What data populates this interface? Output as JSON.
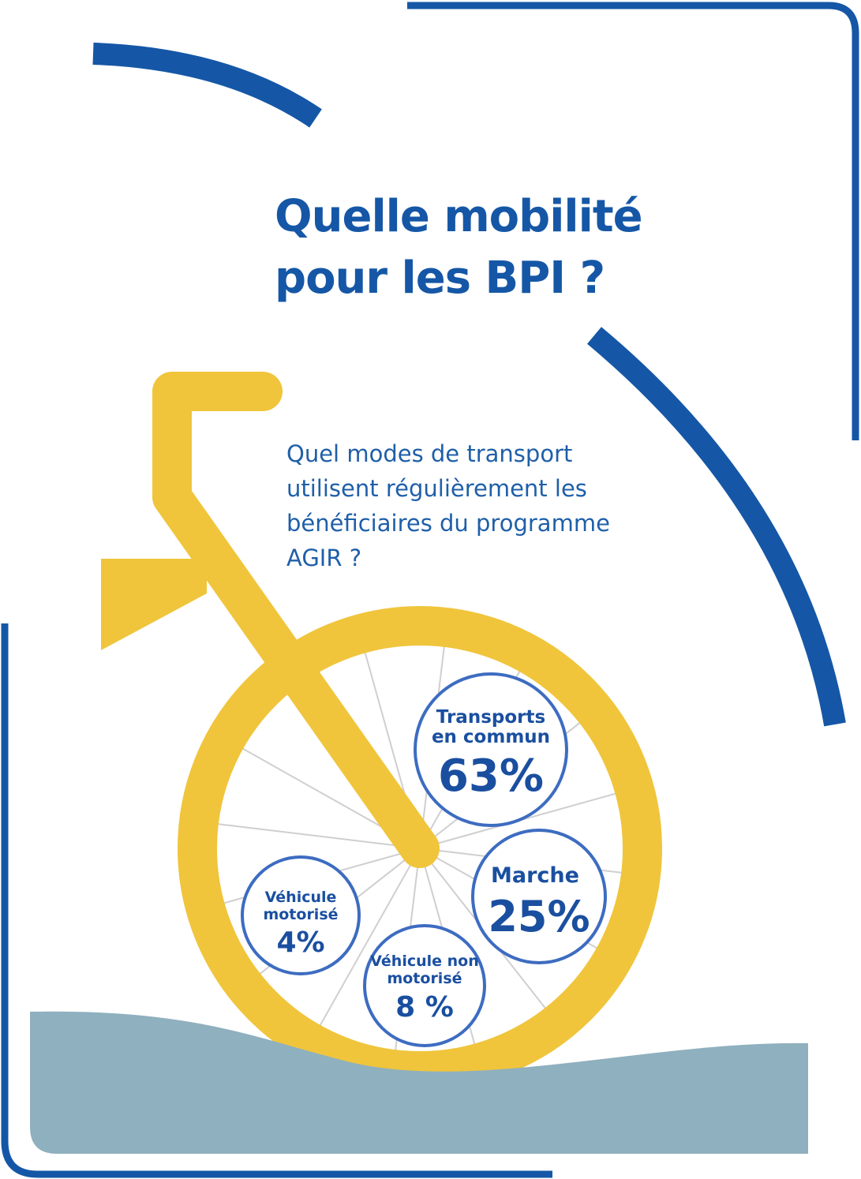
{
  "title_lines": [
    "Quelle mobilité",
    "pour les BPI ?"
  ],
  "subtitle_lines": [
    "Quel modes de transport",
    "utilisent régulièrement les",
    "bénéficiaires du programme",
    "AGIR ?"
  ],
  "colors": {
    "blue": "#1557a6",
    "yellow": "#f0c53c",
    "ground": "#8fb0be",
    "bubble_stroke": "#3d6cc1",
    "spoke": "#cfcfcf"
  },
  "chart_data": {
    "type": "bubble",
    "title": "Quelle mobilité pour les BPI ?",
    "subtitle": "Quel modes de transport utilisent régulièrement les bénéficiaires du programme AGIR ?",
    "series": [
      {
        "label_lines": [
          "Transports",
          "en commun"
        ],
        "value": 63,
        "value_text": "63%"
      },
      {
        "label_lines": [
          "Marche"
        ],
        "value": 25,
        "value_text": "25%"
      },
      {
        "label_lines": [
          "Véhicule non",
          "motorisé"
        ],
        "value": 8,
        "value_text": "8 %"
      },
      {
        "label_lines": [
          "Véhicule",
          "motorisé"
        ],
        "value": 4,
        "value_text": "4%"
      }
    ]
  }
}
